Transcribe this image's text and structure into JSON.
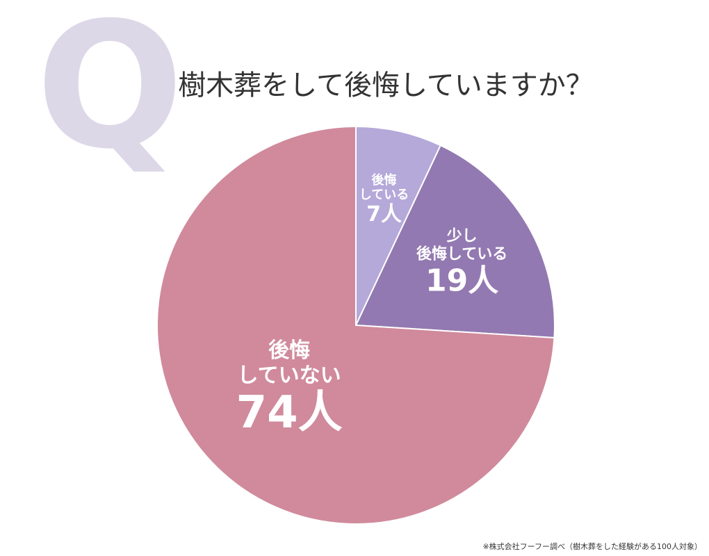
{
  "q_mark": "Q",
  "chart_data": {
    "type": "pie",
    "title": "樹木葬をして後悔していますか？",
    "categories": [
      "後悔\nしている",
      "少し\n後悔している",
      "後悔\nしていない"
    ],
    "values": [
      7,
      19,
      74
    ],
    "value_labels": [
      "7人",
      "19人",
      "74人"
    ],
    "colors": [
      "#b4a9d9",
      "#9379b1",
      "#d08a9c"
    ],
    "start_angle": 0,
    "direction": "clockwise"
  },
  "footnote": "※株式会社フーフー調べ（樹木葬をした経験がある100人対象）"
}
